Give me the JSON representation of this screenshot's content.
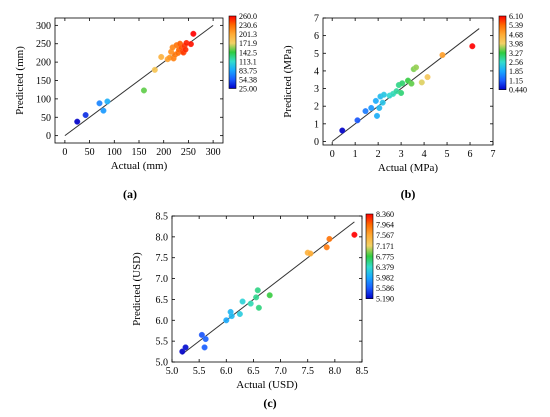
{
  "chart_data": [
    {
      "type": "scatter",
      "panel_label": "(a)",
      "xlabel": "Actual (mm)",
      "ylabel": "Predicted (mm)",
      "xlim": [
        -20,
        320
      ],
      "ylim": [
        -20,
        320
      ],
      "xticks": [
        0,
        50,
        100,
        150,
        200,
        250,
        300
      ],
      "yticks": [
        0,
        50,
        100,
        150,
        200,
        250,
        300
      ],
      "reference_line": [
        [
          0,
          0
        ],
        [
          300,
          300
        ]
      ],
      "colorbar": {
        "ticks": [
          "260.0",
          "230.6",
          "201.3",
          "171.9",
          "142.5",
          "113.1",
          "83.75",
          "54.38",
          "25.00"
        ],
        "colors": [
          "#ff0000",
          "#ff6a00",
          "#ffaa33",
          "#f2d166",
          "#2ecc40",
          "#33ddcc",
          "#19a8ff",
          "#1a5cff",
          "#0000c8"
        ]
      },
      "points": [
        {
          "x": 25,
          "y": 38,
          "v": 25
        },
        {
          "x": 42,
          "y": 56,
          "v": 40
        },
        {
          "x": 70,
          "y": 88,
          "v": 70
        },
        {
          "x": 78,
          "y": 68,
          "v": 78
        },
        {
          "x": 86,
          "y": 93,
          "v": 88
        },
        {
          "x": 160,
          "y": 123,
          "v": 150
        },
        {
          "x": 182,
          "y": 179,
          "v": 182
        },
        {
          "x": 195,
          "y": 214,
          "v": 195
        },
        {
          "x": 208,
          "y": 208,
          "v": 205
        },
        {
          "x": 212,
          "y": 212,
          "v": 210
        },
        {
          "x": 215,
          "y": 228,
          "v": 214
        },
        {
          "x": 218,
          "y": 240,
          "v": 217
        },
        {
          "x": 220,
          "y": 210,
          "v": 220
        },
        {
          "x": 223,
          "y": 220,
          "v": 222
        },
        {
          "x": 226,
          "y": 246,
          "v": 225
        },
        {
          "x": 229,
          "y": 225,
          "v": 228
        },
        {
          "x": 231,
          "y": 233,
          "v": 231
        },
        {
          "x": 233,
          "y": 250,
          "v": 234
        },
        {
          "x": 236,
          "y": 239,
          "v": 237
        },
        {
          "x": 238,
          "y": 229,
          "v": 240
        },
        {
          "x": 240,
          "y": 226,
          "v": 243
        },
        {
          "x": 242,
          "y": 244,
          "v": 245
        },
        {
          "x": 244,
          "y": 234,
          "v": 248
        },
        {
          "x": 246,
          "y": 252,
          "v": 251
        },
        {
          "x": 255,
          "y": 249,
          "v": 255
        },
        {
          "x": 260,
          "y": 277,
          "v": 260
        }
      ]
    },
    {
      "type": "scatter",
      "panel_label": "(b)",
      "xlabel": "Actual (MPa)",
      "ylabel": "Predicted (MPa)",
      "xlim": [
        -0.4,
        7
      ],
      "ylim": [
        -0.2,
        7
      ],
      "xticks": [
        0,
        1,
        2,
        3,
        4,
        5,
        6,
        7
      ],
      "yticks": [
        0,
        1,
        2,
        3,
        4,
        5,
        6,
        7
      ],
      "reference_line": [
        [
          0,
          0
        ],
        [
          6.4,
          6.4
        ]
      ],
      "colorbar": {
        "ticks": [
          "6.10",
          "5.39",
          "4.68",
          "3.98",
          "3.27",
          "2.56",
          "1.85",
          "1.15",
          "0.440"
        ],
        "colors": [
          "#ff0000",
          "#ff6a00",
          "#ffaa33",
          "#f2d166",
          "#2ecc40",
          "#33ddcc",
          "#19a8ff",
          "#1a5cff",
          "#0000c8"
        ]
      },
      "points": [
        {
          "x": 0.44,
          "y": 0.62,
          "v": 0.44
        },
        {
          "x": 1.1,
          "y": 1.2,
          "v": 1.1
        },
        {
          "x": 1.45,
          "y": 1.72,
          "v": 1.45
        },
        {
          "x": 1.7,
          "y": 1.9,
          "v": 1.7
        },
        {
          "x": 1.9,
          "y": 2.3,
          "v": 1.9
        },
        {
          "x": 1.95,
          "y": 1.45,
          "v": 1.95
        },
        {
          "x": 2.05,
          "y": 1.9,
          "v": 2.05
        },
        {
          "x": 2.1,
          "y": 2.55,
          "v": 2.1
        },
        {
          "x": 2.2,
          "y": 2.2,
          "v": 2.2
        },
        {
          "x": 2.25,
          "y": 2.65,
          "v": 2.25
        },
        {
          "x": 2.5,
          "y": 2.6,
          "v": 2.5
        },
        {
          "x": 2.65,
          "y": 2.7,
          "v": 2.65
        },
        {
          "x": 2.8,
          "y": 2.85,
          "v": 2.8
        },
        {
          "x": 2.9,
          "y": 3.2,
          "v": 2.9
        },
        {
          "x": 3.0,
          "y": 2.75,
          "v": 3.0
        },
        {
          "x": 3.05,
          "y": 3.3,
          "v": 3.05
        },
        {
          "x": 3.3,
          "y": 3.45,
          "v": 3.3
        },
        {
          "x": 3.45,
          "y": 3.28,
          "v": 3.45
        },
        {
          "x": 3.55,
          "y": 4.1,
          "v": 3.55
        },
        {
          "x": 3.65,
          "y": 4.2,
          "v": 3.65
        },
        {
          "x": 3.9,
          "y": 3.35,
          "v": 3.9
        },
        {
          "x": 4.15,
          "y": 3.65,
          "v": 4.15
        },
        {
          "x": 4.8,
          "y": 4.9,
          "v": 4.8
        },
        {
          "x": 6.1,
          "y": 5.4,
          "v": 6.1
        }
      ]
    },
    {
      "type": "scatter",
      "panel_label": "(c)",
      "xlabel": "Actual (USD)",
      "ylabel": "Predicted (USD)",
      "xlim": [
        5.0,
        8.5
      ],
      "ylim": [
        5.0,
        8.5
      ],
      "xticks": [
        5.0,
        5.5,
        6.0,
        6.5,
        7.0,
        7.5,
        8.0,
        8.5
      ],
      "yticks": [
        5.0,
        5.5,
        6.0,
        6.5,
        7.0,
        7.5,
        8.0,
        8.5
      ],
      "tick_decimals": 1,
      "reference_line": [
        [
          5.18,
          5.18
        ],
        [
          8.36,
          8.36
        ]
      ],
      "colorbar": {
        "ticks": [
          "8.360",
          "7.964",
          "7.567",
          "7.171",
          "6.775",
          "6.379",
          "5.982",
          "5.586",
          "5.190"
        ],
        "colors": [
          "#ff0000",
          "#ff6a00",
          "#ffaa33",
          "#f2d166",
          "#2ecc40",
          "#33ddcc",
          "#19a8ff",
          "#1a5cff",
          "#0000c8"
        ]
      },
      "points": [
        {
          "x": 5.19,
          "y": 5.25,
          "v": 5.19
        },
        {
          "x": 5.25,
          "y": 5.35,
          "v": 5.25
        },
        {
          "x": 5.55,
          "y": 5.65,
          "v": 5.55
        },
        {
          "x": 5.6,
          "y": 5.35,
          "v": 5.6
        },
        {
          "x": 5.62,
          "y": 5.55,
          "v": 5.62
        },
        {
          "x": 6.0,
          "y": 6.0,
          "v": 6.0
        },
        {
          "x": 6.08,
          "y": 6.2,
          "v": 6.08
        },
        {
          "x": 6.1,
          "y": 6.1,
          "v": 6.1
        },
        {
          "x": 6.25,
          "y": 6.15,
          "v": 6.25
        },
        {
          "x": 6.3,
          "y": 6.45,
          "v": 6.3
        },
        {
          "x": 6.45,
          "y": 6.4,
          "v": 6.45
        },
        {
          "x": 6.55,
          "y": 6.55,
          "v": 6.55
        },
        {
          "x": 6.58,
          "y": 6.72,
          "v": 6.58
        },
        {
          "x": 6.6,
          "y": 6.3,
          "v": 6.6
        },
        {
          "x": 6.8,
          "y": 6.6,
          "v": 6.8
        },
        {
          "x": 7.5,
          "y": 7.62,
          "v": 7.5
        },
        {
          "x": 7.55,
          "y": 7.6,
          "v": 7.55
        },
        {
          "x": 7.85,
          "y": 7.75,
          "v": 7.85
        },
        {
          "x": 7.9,
          "y": 7.95,
          "v": 7.9
        },
        {
          "x": 8.36,
          "y": 8.05,
          "v": 8.36
        }
      ]
    }
  ]
}
